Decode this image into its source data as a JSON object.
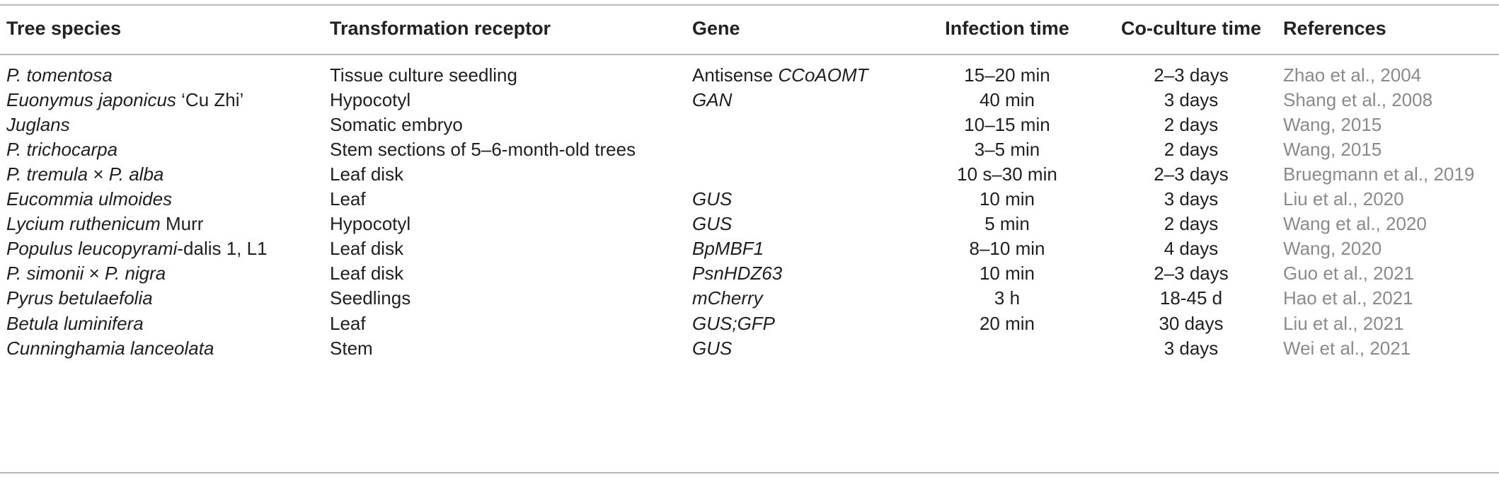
{
  "table": {
    "headers": [
      "Tree species",
      "Transformation receptor",
      "Gene",
      "Infection time",
      "Co-culture time",
      "References"
    ],
    "rows": [
      {
        "species": [
          {
            "t": "P. tomentosa",
            "i": true
          }
        ],
        "receptor": "Tissue culture seedling",
        "gene": [
          {
            "t": "Antisense ",
            "i": false
          },
          {
            "t": "CCoAOMT",
            "i": true
          }
        ],
        "infection": "15–20 min",
        "coculture": "2–3 days",
        "ref": "Zhao et al., 2004"
      },
      {
        "species": [
          {
            "t": "Euonymus japonicus",
            "i": true
          },
          {
            "t": " ‘Cu Zhi’",
            "i": false
          }
        ],
        "receptor": "Hypocotyl",
        "gene": [
          {
            "t": "GAN",
            "i": true
          }
        ],
        "infection": "40 min",
        "coculture": "3 days",
        "ref": "Shang et al., 2008"
      },
      {
        "species": [
          {
            "t": "Juglans",
            "i": true
          }
        ],
        "receptor": "Somatic embryo",
        "gene": [],
        "infection": "10–15 min",
        "coculture": "2 days",
        "ref": "Wang, 2015"
      },
      {
        "species": [
          {
            "t": "P. trichocarpa",
            "i": true
          }
        ],
        "receptor": "Stem sections of 5–6-month-old trees",
        "gene": [],
        "infection": "3–5 min",
        "coculture": "2 days",
        "ref": "Wang, 2015"
      },
      {
        "species": [
          {
            "t": "P. tremula",
            "i": true
          },
          {
            "t": " × ",
            "i": false
          },
          {
            "t": "P. alba",
            "i": true
          }
        ],
        "receptor": "Leaf disk",
        "gene": [],
        "infection": "10 s–30 min",
        "coculture": "2–3 days",
        "ref": "Bruegmann et al., 2019"
      },
      {
        "species": [
          {
            "t": "Eucommia ulmoides",
            "i": true
          }
        ],
        "receptor": "Leaf",
        "gene": [
          {
            "t": "GUS",
            "i": true
          }
        ],
        "infection": "10 min",
        "coculture": "3 days",
        "ref": "Liu et al., 2020"
      },
      {
        "species": [
          {
            "t": "Lycium ruthenicum",
            "i": true
          },
          {
            "t": " Murr",
            "i": false
          }
        ],
        "receptor": "Hypocotyl",
        "gene": [
          {
            "t": "GUS",
            "i": true
          }
        ],
        "infection": "5 min",
        "coculture": "2 days",
        "ref": "Wang et al., 2020"
      },
      {
        "species": [
          {
            "t": "Populus leucopyrami",
            "i": true
          },
          {
            "t": "-dalis 1, L1",
            "i": false
          }
        ],
        "receptor": "Leaf disk",
        "gene": [
          {
            "t": "BpMBF1",
            "i": true
          }
        ],
        "infection": "8–10 min",
        "coculture": "4 days",
        "ref": "Wang, 2020"
      },
      {
        "species": [
          {
            "t": "P. simonii",
            "i": true
          },
          {
            "t": " × ",
            "i": false
          },
          {
            "t": "P. nigra",
            "i": true
          }
        ],
        "receptor": "Leaf disk",
        "gene": [
          {
            "t": "PsnHDZ63",
            "i": true
          }
        ],
        "infection": "10 min",
        "coculture": "2–3 days",
        "ref": "Guo et al., 2021"
      },
      {
        "species": [
          {
            "t": "Pyrus betulaefolia",
            "i": true
          }
        ],
        "receptor": "Seedlings",
        "gene": [
          {
            "t": "mCherry",
            "i": true
          }
        ],
        "infection": "3 h",
        "coculture": "18-45 d",
        "ref": "Hao et al., 2021"
      },
      {
        "species": [
          {
            "t": "Betula luminifera",
            "i": true
          }
        ],
        "receptor": "Leaf",
        "gene": [
          {
            "t": "GUS;GFP",
            "i": true
          }
        ],
        "infection": "20 min",
        "coculture": "30 days",
        "ref": "Liu et al., 2021"
      },
      {
        "species": [
          {
            "t": "Cunninghamia lanceolata",
            "i": true
          }
        ],
        "receptor": "Stem",
        "gene": [
          {
            "t": "GUS",
            "i": true
          }
        ],
        "infection": "",
        "coculture": "3 days",
        "ref": "Wei et al., 2021"
      }
    ]
  }
}
